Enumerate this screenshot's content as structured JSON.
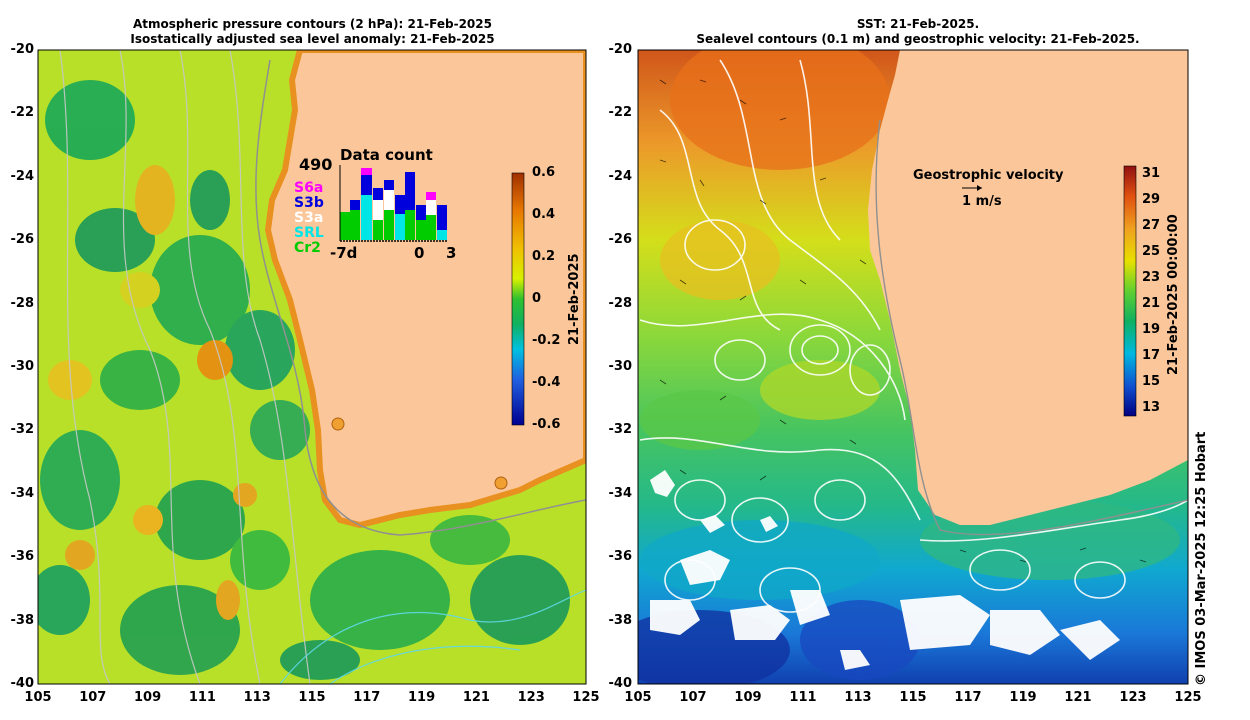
{
  "left_panel": {
    "title_line1": "Atmospheric pressure contours (2 hPa): 21-Feb-2025",
    "title_line2": "Isostatically adjusted sea level anomaly: 21-Feb-2025",
    "colorbar_ticks": [
      "0.6",
      "0.4",
      "0.2",
      "0",
      "-0.2",
      "-0.4",
      "-0.6"
    ],
    "colorbar_label": "21-Feb-2025",
    "data_count": {
      "value": "490",
      "title": "Data count",
      "x_labels": [
        "-7d",
        "0",
        "3"
      ],
      "legend": [
        {
          "name": "S6a",
          "color": "#ff00ff"
        },
        {
          "name": "S3b",
          "color": "#0000dd"
        },
        {
          "name": "S3a",
          "color": "#ffffff"
        },
        {
          "name": "SRL",
          "color": "#00e5e5"
        },
        {
          "name": "Cr2",
          "color": "#00cc00"
        }
      ]
    }
  },
  "right_panel": {
    "title_line1": "SST: 21-Feb-2025.",
    "title_line2": "Sealevel contours (0.1 m) and geostrophic velocity: 21-Feb-2025.",
    "velocity_label": "Geostrophic velocity",
    "velocity_scale": "1 m/s",
    "colorbar_ticks": [
      "31",
      "29",
      "27",
      "25",
      "23",
      "21",
      "19",
      "17",
      "15",
      "13"
    ],
    "colorbar_label": "21-Feb-2025 00:00:00"
  },
  "axes": {
    "y_ticks": [
      "-20",
      "-22",
      "-24",
      "-26",
      "-28",
      "-30",
      "-32",
      "-34",
      "-36",
      "-38",
      "-40"
    ],
    "x_ticks": [
      "105",
      "107",
      "109",
      "111",
      "113",
      "115",
      "117",
      "119",
      "121",
      "123",
      "125"
    ]
  },
  "credit": "© IMOS 03-Mar-2025 12:25 Hobart",
  "colors": {
    "land": "#fbc79a",
    "sla_mid": "#c8e61e",
    "sst_warm": "#e8781e"
  }
}
